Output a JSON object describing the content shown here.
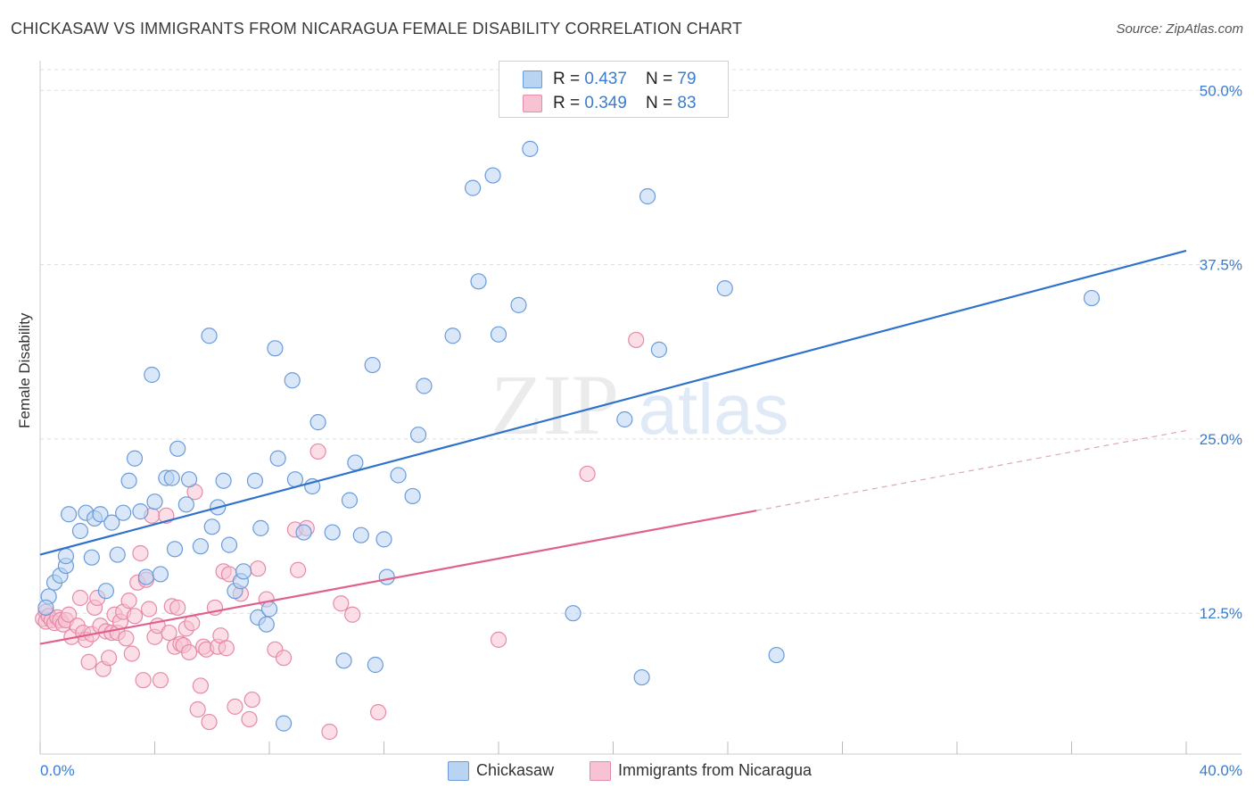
{
  "title": "CHICKASAW VS IMMIGRANTS FROM NICARAGUA FEMALE DISABILITY CORRELATION CHART",
  "source": "Source: ZipAtlas.com",
  "colors": {
    "blue_fill": "#b9d3f3",
    "blue_stroke": "#6b9bd9",
    "blue_line": "#2f72cc",
    "pink_fill": "#f7c2d2",
    "pink_stroke": "#e58aa8",
    "pink_line": "#e0608e",
    "tick_label": "#3a7cd0",
    "grid": "#dddddd"
  },
  "stats": {
    "row1": {
      "r_label": "R = ",
      "r": "0.437",
      "n_label": "N = ",
      "n": "79"
    },
    "row2": {
      "r_label": "R = ",
      "r": "0.349",
      "n_label": "N = ",
      "n": "83"
    }
  },
  "watermark": {
    "zip": "ZIP",
    "atlas": "atlas"
  },
  "chart_data": {
    "type": "scatter",
    "ylabel": "Female Disability",
    "xlim": [
      0,
      40
    ],
    "ylim": [
      2.4,
      52.0
    ],
    "x_tick_labels": [
      "0.0%",
      "40.0%"
    ],
    "y_ticks": [
      12.5,
      25.0,
      37.5,
      50.0
    ],
    "y_tick_labels": [
      "12.5%",
      "25.0%",
      "37.5%",
      "50.0%"
    ],
    "grid": true,
    "legend_position": "bottom",
    "series": [
      {
        "name": "Chickasaw",
        "trend": {
          "x0": 0,
          "y0": 16.7,
          "x1": 40,
          "y1": 38.5,
          "solid_until": 40
        },
        "points": [
          [
            0.3,
            13.7
          ],
          [
            0.5,
            14.7
          ],
          [
            0.7,
            15.2
          ],
          [
            0.9,
            15.9
          ],
          [
            0.9,
            16.6
          ],
          [
            1.0,
            19.6
          ],
          [
            1.4,
            18.4
          ],
          [
            1.6,
            19.7
          ],
          [
            1.8,
            16.5
          ],
          [
            1.9,
            19.3
          ],
          [
            2.1,
            19.6
          ],
          [
            2.3,
            14.1
          ],
          [
            2.5,
            19.0
          ],
          [
            2.7,
            16.7
          ],
          [
            2.9,
            19.7
          ],
          [
            3.1,
            22.0
          ],
          [
            3.3,
            23.6
          ],
          [
            3.5,
            19.8
          ],
          [
            3.7,
            15.1
          ],
          [
            3.9,
            29.6
          ],
          [
            4.0,
            20.5
          ],
          [
            4.2,
            15.3
          ],
          [
            4.4,
            22.2
          ],
          [
            4.6,
            22.2
          ],
          [
            4.7,
            17.1
          ],
          [
            4.8,
            24.3
          ],
          [
            5.1,
            20.3
          ],
          [
            5.2,
            22.1
          ],
          [
            5.6,
            17.3
          ],
          [
            5.9,
            32.4
          ],
          [
            6.0,
            18.7
          ],
          [
            6.2,
            20.1
          ],
          [
            6.4,
            22.0
          ],
          [
            6.6,
            17.4
          ],
          [
            6.8,
            14.1
          ],
          [
            7.0,
            14.8
          ],
          [
            7.1,
            15.5
          ],
          [
            7.5,
            22.0
          ],
          [
            7.6,
            12.2
          ],
          [
            7.7,
            18.6
          ],
          [
            7.9,
            11.7
          ],
          [
            8.0,
            12.8
          ],
          [
            8.2,
            31.5
          ],
          [
            8.3,
            23.6
          ],
          [
            8.5,
            4.6
          ],
          [
            8.8,
            29.2
          ],
          [
            8.9,
            22.1
          ],
          [
            9.2,
            18.3
          ],
          [
            9.5,
            21.6
          ],
          [
            9.7,
            26.2
          ],
          [
            10.2,
            18.3
          ],
          [
            10.6,
            9.1
          ],
          [
            10.8,
            20.6
          ],
          [
            11.0,
            23.3
          ],
          [
            11.2,
            18.1
          ],
          [
            11.6,
            30.3
          ],
          [
            11.7,
            8.8
          ],
          [
            12.0,
            17.8
          ],
          [
            12.1,
            15.1
          ],
          [
            12.5,
            22.4
          ],
          [
            13.0,
            20.9
          ],
          [
            13.2,
            25.3
          ],
          [
            13.4,
            28.8
          ],
          [
            14.4,
            32.4
          ],
          [
            15.1,
            43.0
          ],
          [
            15.3,
            36.3
          ],
          [
            15.8,
            43.9
          ],
          [
            16.0,
            32.5
          ],
          [
            16.7,
            34.6
          ],
          [
            17.1,
            45.8
          ],
          [
            18.6,
            12.5
          ],
          [
            20.4,
            26.4
          ],
          [
            21.0,
            7.9
          ],
          [
            21.2,
            42.4
          ],
          [
            21.6,
            31.4
          ],
          [
            23.9,
            35.8
          ],
          [
            25.7,
            9.5
          ],
          [
            36.7,
            35.1
          ],
          [
            0.2,
            12.9
          ]
        ]
      },
      {
        "name": "Immigrants from Nicaragua",
        "trend": {
          "x0": 0,
          "y0": 10.3,
          "x1": 40,
          "y1": 25.6,
          "solid_until": 25
        },
        "points": [
          [
            0.1,
            12.1
          ],
          [
            0.2,
            12.6
          ],
          [
            0.2,
            11.9
          ],
          [
            0.3,
            12.3
          ],
          [
            0.4,
            12.0
          ],
          [
            0.5,
            11.8
          ],
          [
            0.6,
            12.2
          ],
          [
            0.7,
            12.0
          ],
          [
            0.8,
            11.7
          ],
          [
            0.9,
            12.0
          ],
          [
            1.0,
            12.4
          ],
          [
            1.1,
            10.8
          ],
          [
            1.3,
            11.6
          ],
          [
            1.4,
            13.6
          ],
          [
            1.5,
            11.1
          ],
          [
            1.6,
            10.6
          ],
          [
            1.7,
            9.0
          ],
          [
            1.8,
            11.0
          ],
          [
            1.9,
            12.9
          ],
          [
            2.0,
            13.6
          ],
          [
            2.1,
            11.6
          ],
          [
            2.2,
            8.5
          ],
          [
            2.3,
            11.2
          ],
          [
            2.4,
            9.3
          ],
          [
            2.5,
            11.1
          ],
          [
            2.6,
            12.4
          ],
          [
            2.7,
            11.1
          ],
          [
            2.8,
            11.9
          ],
          [
            2.9,
            12.6
          ],
          [
            3.0,
            10.7
          ],
          [
            3.1,
            13.4
          ],
          [
            3.2,
            9.6
          ],
          [
            3.3,
            12.3
          ],
          [
            3.4,
            14.7
          ],
          [
            3.5,
            16.8
          ],
          [
            3.6,
            7.7
          ],
          [
            3.7,
            14.9
          ],
          [
            3.8,
            12.8
          ],
          [
            3.9,
            19.5
          ],
          [
            4.0,
            10.8
          ],
          [
            4.1,
            11.6
          ],
          [
            4.2,
            7.7
          ],
          [
            4.4,
            19.5
          ],
          [
            4.5,
            11.1
          ],
          [
            4.6,
            13.0
          ],
          [
            4.7,
            10.1
          ],
          [
            4.8,
            12.9
          ],
          [
            4.9,
            10.3
          ],
          [
            5.0,
            10.2
          ],
          [
            5.1,
            11.4
          ],
          [
            5.2,
            9.7
          ],
          [
            5.3,
            11.8
          ],
          [
            5.4,
            21.2
          ],
          [
            5.5,
            5.6
          ],
          [
            5.6,
            7.3
          ],
          [
            5.7,
            10.1
          ],
          [
            5.8,
            9.9
          ],
          [
            5.9,
            4.7
          ],
          [
            6.1,
            12.9
          ],
          [
            6.2,
            10.1
          ],
          [
            6.3,
            10.9
          ],
          [
            6.4,
            15.5
          ],
          [
            6.5,
            10.0
          ],
          [
            6.6,
            15.3
          ],
          [
            6.8,
            5.8
          ],
          [
            7.0,
            13.9
          ],
          [
            7.3,
            4.9
          ],
          [
            7.4,
            6.3
          ],
          [
            7.6,
            15.7
          ],
          [
            7.9,
            13.5
          ],
          [
            8.2,
            9.9
          ],
          [
            8.5,
            9.3
          ],
          [
            8.9,
            18.5
          ],
          [
            9.0,
            15.6
          ],
          [
            9.3,
            18.6
          ],
          [
            9.7,
            24.1
          ],
          [
            10.1,
            4.0
          ],
          [
            10.5,
            13.2
          ],
          [
            10.9,
            12.4
          ],
          [
            11.8,
            5.4
          ],
          [
            16.0,
            10.6
          ],
          [
            20.8,
            32.1
          ],
          [
            19.1,
            22.5
          ]
        ]
      }
    ]
  },
  "legend": {
    "item1": "Chickasaw",
    "item2": "Immigrants from Nicaragua"
  }
}
